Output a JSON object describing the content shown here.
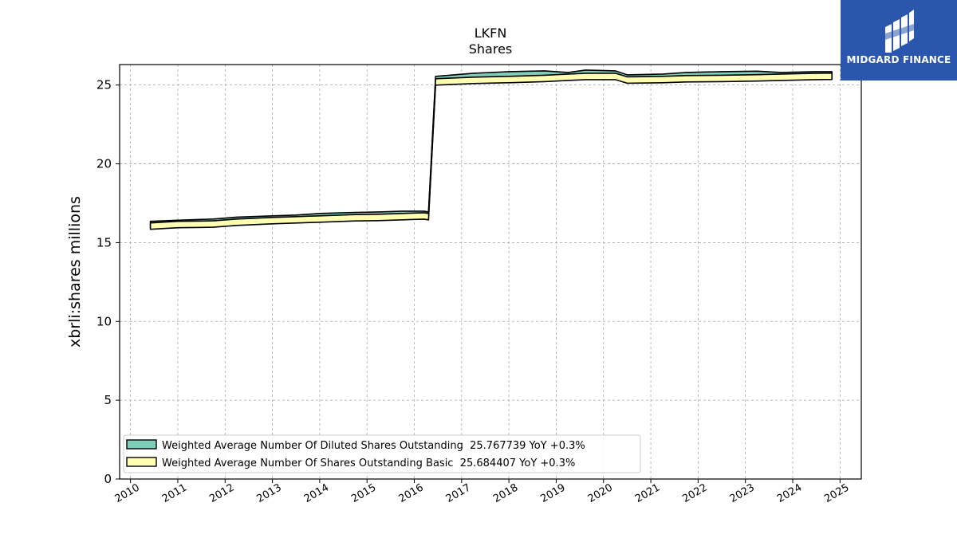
{
  "chart_data": {
    "type": "area",
    "title": "LKFN",
    "subtitle": "Shares",
    "ylabel": "xbrli:shares millions",
    "xlabel": "",
    "xlim": [
      2009.77,
      2025.45
    ],
    "ylim": [
      0,
      26.3
    ],
    "yticks": [
      0,
      5,
      10,
      15,
      20,
      25
    ],
    "xticks": [
      "2010",
      "2011",
      "2012",
      "2013",
      "2014",
      "2015",
      "2016",
      "2017",
      "2018",
      "2019",
      "2020",
      "2021",
      "2022",
      "2023",
      "2024",
      "2025"
    ],
    "grid": true,
    "legend_position": "lower-left",
    "series": [
      {
        "name": "Weighted Average Number Of Diluted Shares Outstanding  25.767739 YoY +0.3%",
        "color": "#7fcdbb",
        "x": [
          2010.42,
          2011.0,
          2011.75,
          2012.25,
          2013.0,
          2013.5,
          2014.0,
          2014.75,
          2015.25,
          2015.75,
          2016.2,
          2016.3,
          2016.45,
          2017.25,
          2018.0,
          2018.75,
          2019.25,
          2019.62,
          2020.25,
          2020.5,
          2021.25,
          2021.75,
          2022.5,
          2023.25,
          2023.75,
          2024.5,
          2024.83
        ],
        "y": [
          16.35,
          16.42,
          16.5,
          16.62,
          16.7,
          16.75,
          16.85,
          16.92,
          16.95,
          17.0,
          17.0,
          16.95,
          25.55,
          25.75,
          25.85,
          25.9,
          25.8,
          25.95,
          25.9,
          25.65,
          25.7,
          25.8,
          25.85,
          25.88,
          25.8,
          25.85,
          25.85
        ]
      },
      {
        "name": "Weighted Average Number Of Shares Outstanding Basic  25.684407 YoY +0.3%",
        "color": "#ffffb2",
        "x": [
          2010.42,
          2011.0,
          2011.75,
          2012.25,
          2013.0,
          2013.5,
          2014.0,
          2014.75,
          2015.25,
          2015.75,
          2016.2,
          2016.3,
          2016.45,
          2017.25,
          2018.0,
          2018.75,
          2019.25,
          2019.62,
          2020.25,
          2020.5,
          2021.25,
          2021.75,
          2022.5,
          2023.25,
          2023.75,
          2024.5,
          2024.83
        ],
        "y": [
          16.25,
          16.35,
          16.38,
          16.5,
          16.6,
          16.65,
          16.7,
          16.78,
          16.8,
          16.85,
          16.9,
          16.85,
          25.4,
          25.5,
          25.55,
          25.62,
          25.7,
          25.75,
          25.75,
          25.52,
          25.55,
          25.6,
          25.62,
          25.66,
          25.7,
          25.75,
          25.76
        ]
      }
    ]
  },
  "logo": {
    "text": "MIDGARD FINANCE",
    "color": "#2a57ad"
  }
}
